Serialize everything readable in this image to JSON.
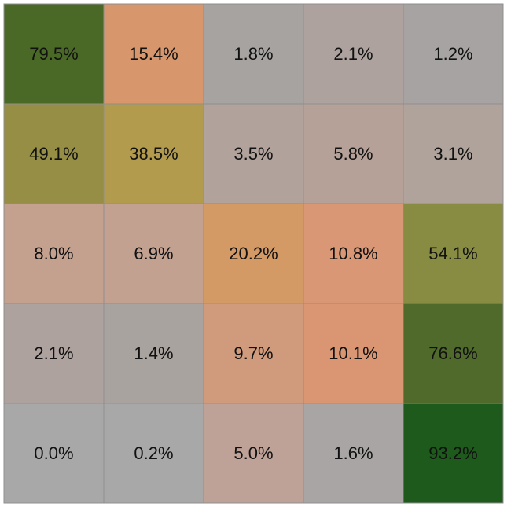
{
  "chart_data": {
    "type": "heatmap",
    "title": "",
    "xlabel": "",
    "ylabel": "",
    "value_format": "percent",
    "rows": [
      {
        "values": [
          79.5,
          15.4,
          1.8,
          2.1,
          1.2
        ],
        "labels": [
          "79.5%",
          "15.4%",
          "1.8%",
          "2.1%",
          "1.2%"
        ],
        "colors": [
          "#4b6926",
          "#d7966b",
          "#a7a3a1",
          "#ada29d",
          "#a6a3a2"
        ]
      },
      {
        "values": [
          49.1,
          38.5,
          3.5,
          5.8,
          3.1
        ],
        "labels": [
          "49.1%",
          "38.5%",
          "3.5%",
          "5.8%",
          "3.1%"
        ],
        "colors": [
          "#958e44",
          "#b39b4e",
          "#b1a29b",
          "#b6a199",
          "#b0a39b"
        ]
      },
      {
        "values": [
          8.0,
          6.9,
          20.2,
          10.8,
          54.1
        ],
        "labels": [
          "8.0%",
          "6.9%",
          "20.2%",
          "10.8%",
          "54.1%"
        ],
        "colors": [
          "#c4a08f",
          "#c2a191",
          "#d39a65",
          "#d99776",
          "#888b42"
        ]
      },
      {
        "values": [
          2.1,
          1.4,
          9.7,
          10.1,
          76.6
        ],
        "labels": [
          "2.1%",
          "1.4%",
          "9.7%",
          "10.1%",
          "76.6%"
        ],
        "colors": [
          "#ada29d",
          "#a9a3a0",
          "#d09b7d",
          "#da9673",
          "#4f6a2b"
        ]
      },
      {
        "values": [
          0.0,
          0.2,
          5.0,
          1.6,
          93.2
        ],
        "labels": [
          "0.0%",
          "0.2%",
          "5.0%",
          "1.6%",
          "93.2%"
        ],
        "colors": [
          "#a8a8a8",
          "#a8a8a8",
          "#bea298",
          "#a8a5a4",
          "#1e5a1b"
        ]
      }
    ]
  }
}
